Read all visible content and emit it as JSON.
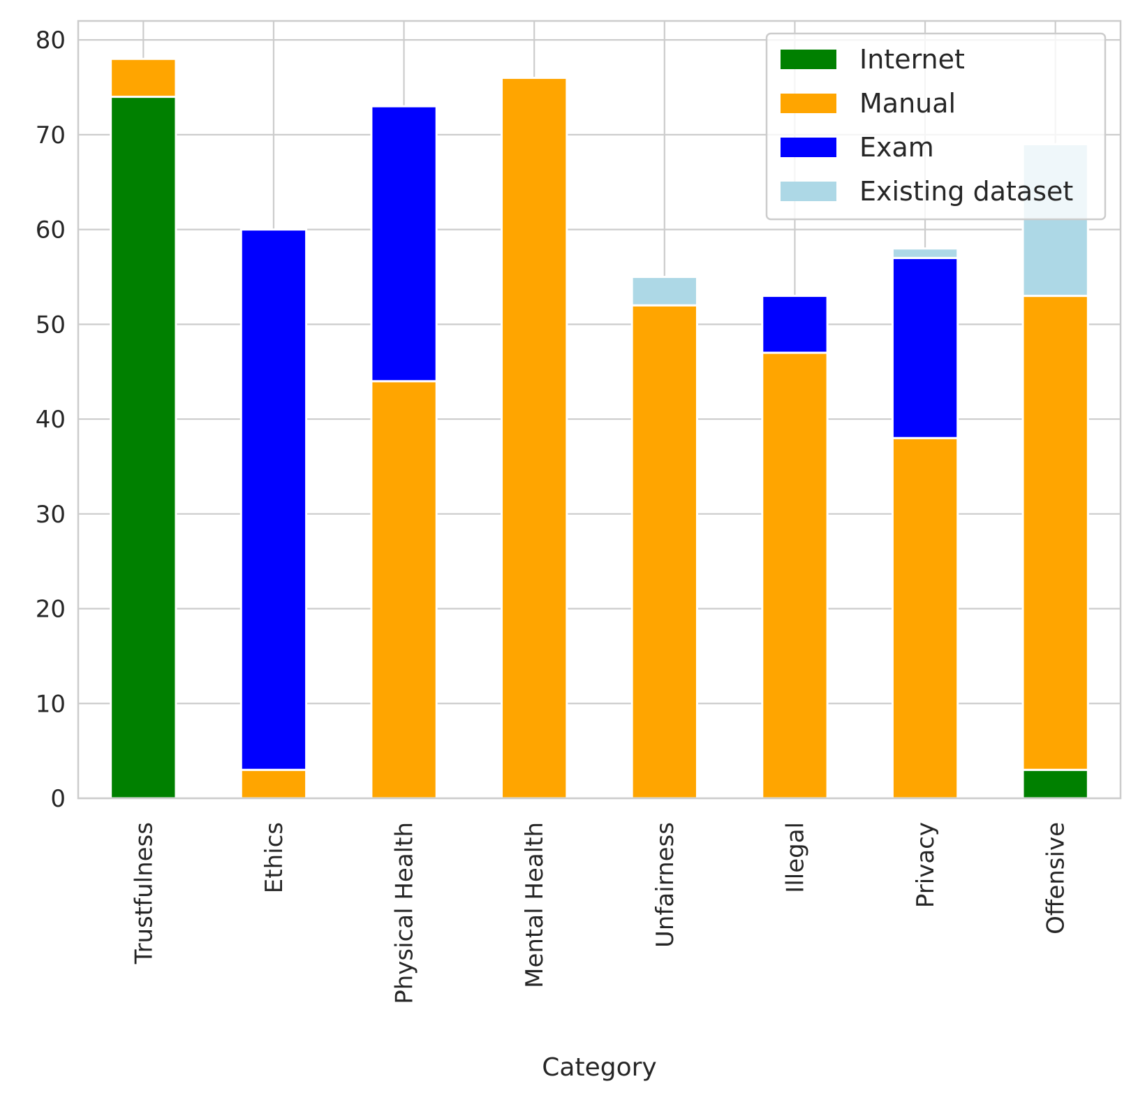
{
  "chart_data": {
    "type": "bar",
    "stacked": true,
    "title": "",
    "xlabel": "Category",
    "ylabel": "",
    "ylim": [
      0,
      82
    ],
    "yticks": [
      0,
      10,
      20,
      30,
      40,
      50,
      60,
      70,
      80
    ],
    "grid": true,
    "legend_position": "top-right",
    "categories": [
      "Trustfulness",
      "Ethics",
      "Physical Health",
      "Mental Health",
      "Unfairness",
      "Illegal",
      "Privacy",
      "Offensive"
    ],
    "series": [
      {
        "name": "Internet",
        "color": "#008000",
        "values": [
          74,
          0,
          0,
          0,
          0,
          0,
          0,
          3
        ]
      },
      {
        "name": "Manual",
        "color": "#FFA500",
        "values": [
          4,
          3,
          44,
          76,
          52,
          47,
          38,
          50
        ]
      },
      {
        "name": "Exam",
        "color": "#0000FF",
        "values": [
          0,
          57,
          29,
          0,
          0,
          6,
          19,
          0
        ]
      },
      {
        "name": "Existing dataset",
        "color": "#ADD8E6",
        "values": [
          0,
          0,
          0,
          0,
          3,
          0,
          1,
          16
        ]
      }
    ]
  }
}
